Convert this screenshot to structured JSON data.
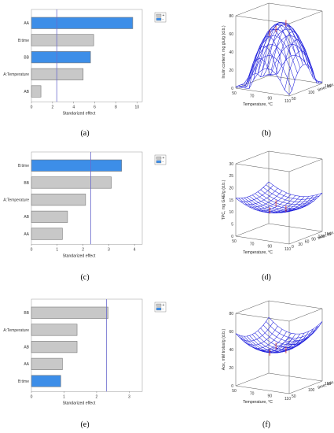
{
  "pareto_charts": [
    {
      "caption": "(a)",
      "type": "bar",
      "orientation": "horizontal",
      "categories": [
        "AA",
        "B:time",
        "BB",
        "A:Temperature",
        "AB"
      ],
      "values": [
        9.6,
        5.9,
        5.6,
        4.9,
        0.9
      ],
      "positive": [
        true,
        false,
        true,
        false,
        false
      ],
      "ticks": [
        "0",
        "2",
        "4",
        "6",
        "8",
        "10"
      ],
      "xlim": [
        0,
        10.5
      ],
      "xlabel": "Standarized effect",
      "threshold": 2.4,
      "legend": [
        "+",
        "-"
      ]
    },
    {
      "caption": "(c)",
      "type": "bar",
      "orientation": "horizontal",
      "categories": [
        "B:time",
        "BB",
        "A:Temperature",
        "AB",
        "AA"
      ],
      "values": [
        3.5,
        3.1,
        2.1,
        1.4,
        1.2
      ],
      "positive": [
        true,
        false,
        false,
        false,
        false
      ],
      "ticks": [
        "0",
        "1",
        "2",
        "3",
        "4"
      ],
      "xlim": [
        0,
        4.3
      ],
      "xlabel": "Standarized effect",
      "threshold": 2.3,
      "legend": [
        "+",
        "-"
      ]
    },
    {
      "caption": "(e)",
      "type": "bar",
      "orientation": "horizontal",
      "categories": [
        "BB",
        "A:Temperature",
        "AB",
        "AA",
        "B:time"
      ],
      "values": [
        2.35,
        1.4,
        1.4,
        0.95,
        0.9
      ],
      "positive": [
        false,
        false,
        false,
        false,
        true
      ],
      "ticks": [
        "0",
        "1",
        "2",
        "3"
      ],
      "xlim": [
        0,
        3.4
      ],
      "xlabel": "Standarized effect",
      "threshold": 2.3,
      "legend": [
        "+",
        "-"
      ]
    }
  ],
  "surface_plots": [
    {
      "caption": "(b)",
      "zlabel": "Inulin content, mg glu/g (d.b.)",
      "xlabel": "Temperature, °C",
      "ylabel": "time, min",
      "zticks": [
        "0",
        "20",
        "40",
        "60",
        "80"
      ],
      "xticks": [
        "50",
        "70",
        "90",
        "110"
      ],
      "yticks": [
        "50",
        "100",
        "150"
      ]
    },
    {
      "caption": "(d)",
      "zlabel": "TPC, mg GAE/g (d.b.)",
      "xlabel": "Temperature, °C",
      "ylabel": "time, min",
      "zticks": [
        "0",
        "5",
        "10",
        "15",
        "20",
        "25",
        "30"
      ],
      "xticks": [
        "50",
        "70",
        "90",
        "110"
      ],
      "yticks": [
        "0",
        "30",
        "60",
        "90",
        "120",
        "150"
      ]
    },
    {
      "caption": "(f)",
      "zlabel": "Aox, mM trolox/g (d.b.)",
      "xlabel": "Temperature, °C",
      "ylabel": "time, min",
      "zticks": [
        "0",
        "20",
        "40",
        "60",
        "80"
      ],
      "xticks": [
        "50",
        "70",
        "90",
        "110"
      ],
      "yticks": [
        "50",
        "100",
        "150"
      ]
    }
  ],
  "colors": {
    "positive_bar": "#3d8ee8",
    "negative_bar": "#c8c8c8",
    "bar_stroke": "#777777",
    "threshold_line": "#6a6acd",
    "mesh": "#2222dd",
    "box": "#555555"
  }
}
